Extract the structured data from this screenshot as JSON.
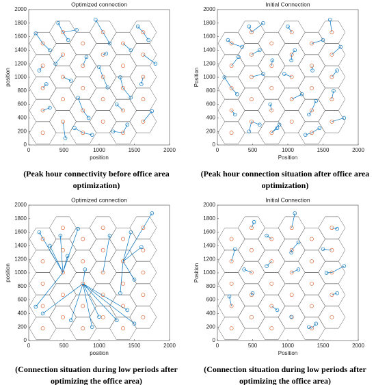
{
  "chart_data": [
    {
      "type": "network",
      "title": "Optimized connection",
      "xlabel": "position",
      "ylabel": "position",
      "caption": [
        "(Peak hour connectivity before office area",
        "optimization)"
      ],
      "xlim": [
        0,
        2000
      ],
      "ylim": [
        0,
        2000
      ],
      "xticks": [
        0,
        500,
        1000,
        1500,
        2000
      ],
      "yticks": [
        0,
        200,
        400,
        600,
        800,
        1000,
        1200,
        1400,
        1600,
        1800,
        2000
      ],
      "user_color": "#0072bd",
      "station_color": "#d95319",
      "stations": {
        "x": [
          200,
          200,
          200,
          200,
          200,
          485,
          485,
          485,
          485,
          485,
          770,
          770,
          770,
          770,
          770,
          1055,
          1055,
          1055,
          1055,
          1055,
          1340,
          1340,
          1340,
          1340,
          1340,
          1625,
          1625,
          1625,
          1625,
          1625
        ],
        "y": [
          180,
          510,
          840,
          1170,
          1500,
          345,
          675,
          1005,
          1335,
          1665,
          180,
          510,
          840,
          1170,
          1500,
          345,
          675,
          1005,
          1335,
          1665,
          180,
          510,
          840,
          1170,
          1500,
          345,
          675,
          1005,
          1335,
          1665
        ]
      },
      "users": {
        "x": [
          100,
          300,
          150,
          250,
          420,
          560,
          380,
          600,
          700,
          850,
          820,
          680,
          950,
          1150,
          1000,
          1120,
          1250,
          1400,
          1300,
          1450,
          1550,
          1700,
          1600,
          1750,
          1200,
          900,
          520,
          300,
          1450,
          1800,
          650,
          1100
        ],
        "y": [
          1650,
          1400,
          1100,
          900,
          1800,
          1550,
          1200,
          950,
          700,
          400,
          1300,
          1700,
          1850,
          1500,
          1150,
          850,
          600,
          300,
          1000,
          1400,
          1750,
          1550,
          900,
          500,
          200,
          150,
          100,
          550,
          700,
          1200,
          250,
          1350
        ],
        "link": [
          4,
          4,
          3,
          2,
          9,
          9,
          8,
          7,
          11,
          11,
          13,
          9,
          19,
          19,
          17,
          17,
          21,
          20,
          22,
          24,
          29,
          29,
          27,
          25,
          20,
          10,
          5,
          1,
          22,
          28,
          10,
          18
        ]
      }
    },
    {
      "type": "network",
      "title": "Initial Connection",
      "xlabel": "Position",
      "ylabel": "Position",
      "caption": [
        "(Peak hour connection situation after office area",
        "optimization)"
      ],
      "xlim": [
        0,
        2000
      ],
      "ylim": [
        0,
        2000
      ],
      "xticks": [
        0,
        500,
        1000,
        1500,
        2000
      ],
      "yticks": [
        0,
        200,
        400,
        600,
        800,
        1000,
        1200,
        1400,
        1600,
        1800,
        2000
      ],
      "user_color": "#0072bd",
      "station_color": "#d95319",
      "stations": {
        "x": [
          200,
          200,
          200,
          200,
          200,
          485,
          485,
          485,
          485,
          485,
          770,
          770,
          770,
          770,
          770,
          1055,
          1055,
          1055,
          1055,
          1055,
          1340,
          1340,
          1340,
          1340,
          1340,
          1625,
          1625,
          1625,
          1625,
          1625
        ],
        "y": [
          180,
          510,
          840,
          1170,
          1500,
          345,
          675,
          1005,
          1335,
          1665,
          180,
          510,
          840,
          1170,
          1500,
          345,
          675,
          1005,
          1335,
          1665,
          180,
          510,
          840,
          1170,
          1500,
          345,
          675,
          1005,
          1335,
          1665
        ]
      },
      "users": {
        "x": [
          150,
          350,
          100,
          280,
          450,
          600,
          300,
          650,
          750,
          880,
          780,
          650,
          1000,
          1100,
          950,
          1200,
          1300,
          1450,
          1350,
          1500,
          1600,
          1750,
          1650,
          1800,
          1250,
          850,
          450,
          250,
          1400,
          1700,
          600,
          1050
        ],
        "y": [
          1550,
          1450,
          1000,
          750,
          1750,
          1400,
          1300,
          1050,
          600,
          300,
          1250,
          1800,
          1750,
          1400,
          1050,
          750,
          450,
          250,
          1100,
          1550,
          1850,
          1450,
          800,
          400,
          150,
          250,
          200,
          450,
          650,
          1100,
          300,
          1250
        ],
        "link": [
          4,
          4,
          2,
          2,
          9,
          8,
          3,
          7,
          11,
          10,
          13,
          9,
          19,
          18,
          17,
          16,
          21,
          20,
          23,
          24,
          29,
          28,
          26,
          25,
          20,
          10,
          5,
          1,
          21,
          27,
          5,
          18
        ]
      }
    },
    {
      "type": "network",
      "title": "Optimized connection",
      "xlabel": "position",
      "ylabel": "position",
      "caption": [
        "(Connection situation during low periods after",
        "optimizing the office area)"
      ],
      "xlim": [
        0,
        2000
      ],
      "ylim": [
        0,
        2000
      ],
      "xticks": [
        0,
        500,
        1000,
        1500,
        2000
      ],
      "yticks": [
        0,
        200,
        400,
        600,
        800,
        1000,
        1200,
        1400,
        1600,
        1800,
        2000
      ],
      "user_color": "#0072bd",
      "station_color": "#d95319",
      "stations": {
        "x": [
          200,
          200,
          200,
          200,
          200,
          485,
          485,
          485,
          485,
          485,
          770,
          770,
          770,
          770,
          770,
          1055,
          1055,
          1055,
          1055,
          1055,
          1340,
          1340,
          1340,
          1340,
          1340,
          1625,
          1625,
          1625,
          1625,
          1625
        ],
        "y": [
          180,
          510,
          840,
          1170,
          1500,
          345,
          675,
          1005,
          1335,
          1665,
          180,
          510,
          840,
          1170,
          1500,
          345,
          675,
          1005,
          1335,
          1665,
          180,
          510,
          840,
          1170,
          1500,
          345,
          675,
          1005,
          1335,
          1665
        ]
      },
      "users": {
        "x": [
          150,
          300,
          450,
          550,
          200,
          100,
          600,
          900,
          1000,
          1250,
          1400,
          1500,
          700,
          800,
          1150,
          1450,
          1600,
          1750,
          1300,
          1500
        ],
        "y": [
          1600,
          1400,
          1550,
          1250,
          400,
          500,
          300,
          200,
          350,
          300,
          450,
          250,
          1650,
          1050,
          1550,
          1600,
          1380,
          1880,
          700,
          900
        ],
        "link": [
          7,
          7,
          7,
          7,
          12,
          7,
          12,
          12,
          12,
          12,
          12,
          12,
          7,
          12,
          17,
          23,
          23,
          23,
          23,
          23
        ]
      }
    },
    {
      "type": "network",
      "title": "Initial Connection",
      "xlabel": "Position",
      "ylabel": "Position",
      "caption": [
        "(Connection situation during low periods after",
        "optimizing the office area)"
      ],
      "xlim": [
        0,
        2000
      ],
      "ylim": [
        0,
        2000
      ],
      "xticks": [
        0,
        500,
        1000,
        1500,
        2000
      ],
      "yticks": [
        0,
        200,
        400,
        600,
        800,
        1000,
        1200,
        1400,
        1600,
        1800,
        2000
      ],
      "user_color": "#0072bd",
      "station_color": "#d95319",
      "stations": {
        "x": [
          200,
          200,
          200,
          200,
          200,
          485,
          485,
          485,
          485,
          485,
          770,
          770,
          770,
          770,
          770,
          1055,
          1055,
          1055,
          1055,
          1055,
          1340,
          1340,
          1340,
          1340,
          1340,
          1625,
          1625,
          1625,
          1625,
          1625
        ],
        "y": [
          180,
          510,
          840,
          1170,
          1500,
          345,
          675,
          1005,
          1335,
          1665,
          180,
          510,
          840,
          1170,
          1500,
          345,
          675,
          1005,
          1335,
          1665,
          180,
          510,
          840,
          1170,
          1500,
          345,
          675,
          1005,
          1335,
          1665
        ]
      },
      "users": {
        "x": [
          250,
          520,
          700,
          1100,
          1150,
          1500,
          1700,
          1800,
          380,
          700,
          1050,
          1150,
          1550,
          170,
          500,
          850,
          1050,
          1400,
          1700,
          1300
        ],
        "y": [
          1350,
          1750,
          1550,
          1880,
          1450,
          1350,
          1650,
          1100,
          1050,
          1100,
          1300,
          1050,
          1000,
          650,
          700,
          450,
          350,
          250,
          700,
          200
        ],
        "link": [
          3,
          9,
          14,
          19,
          18,
          28,
          29,
          27,
          7,
          13,
          18,
          17,
          27,
          1,
          6,
          11,
          15,
          20,
          26,
          20
        ]
      }
    }
  ]
}
